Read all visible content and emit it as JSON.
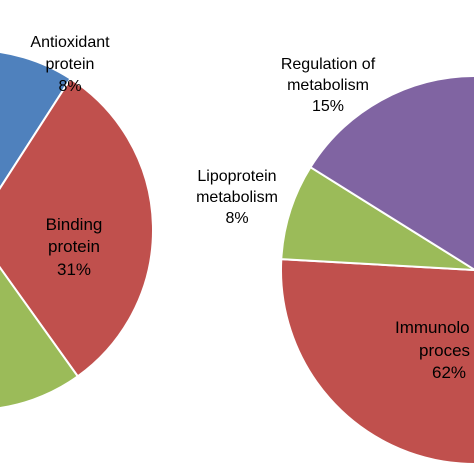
{
  "colors": {
    "blue": "#4F81BD",
    "red": "#C0504D",
    "green": "#9BBB59",
    "purple": "#8064A2"
  },
  "chart_data": [
    {
      "type": "pie",
      "title": "",
      "slices_visible": [
        {
          "label": "Antioxidant protein",
          "value": 8,
          "value_label": "8%",
          "color": "#4F81BD"
        },
        {
          "label": "Binding protein",
          "value": 31,
          "value_label": "31%",
          "color": "#C0504D"
        },
        {
          "label": "",
          "value": null,
          "value_label": "",
          "color": "#9BBB59"
        }
      ],
      "labels": {
        "antioxidant": [
          "Antioxidant",
          "protein",
          "8%"
        ],
        "binding": [
          "Binding",
          "protein",
          "31%"
        ]
      }
    },
    {
      "type": "pie",
      "title": "",
      "slices_visible": [
        {
          "label": "Regulation of metabolism",
          "value": 15,
          "value_label": "15%",
          "color": "#8064A2"
        },
        {
          "label": "Lipoprotein metabolism",
          "value": 8,
          "value_label": "8%",
          "color": "#9BBB59"
        },
        {
          "label": "Immunolo... proces...",
          "value": 62,
          "value_label": "62%",
          "color": "#C0504D"
        },
        {
          "label": "",
          "value": null,
          "value_label": "",
          "color": "#4F81BD"
        }
      ],
      "labels": {
        "regulation": [
          "Regulation  of",
          "metabolism",
          "15%"
        ],
        "lipoprotein": [
          "Lipoprotein",
          "metabolism",
          "8%"
        ],
        "immuno": [
          "Immunolo",
          "proces",
          "62%"
        ]
      }
    }
  ]
}
